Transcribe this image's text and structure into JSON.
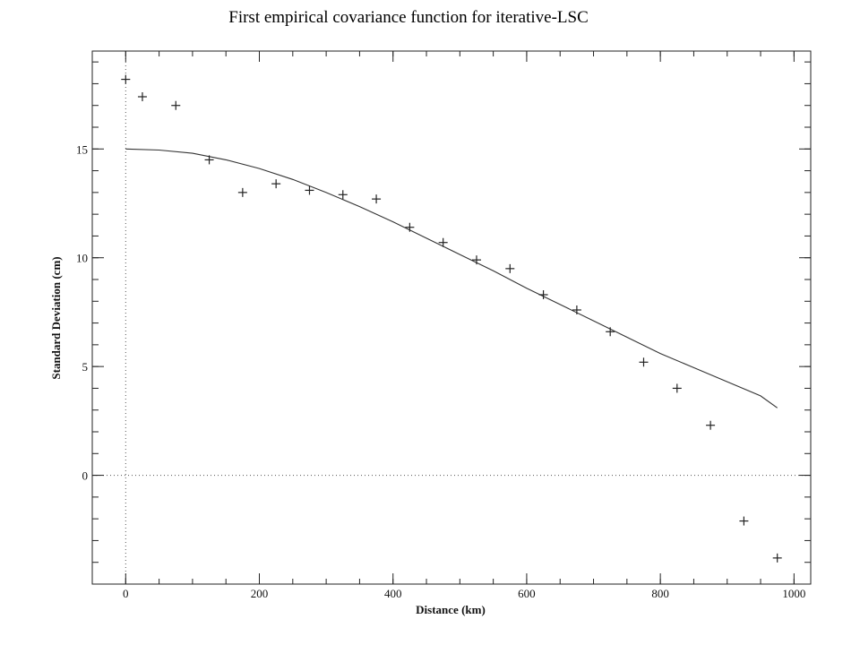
{
  "chart_data": {
    "type": "scatter",
    "title": "First empirical covariance function for iterative-LSC",
    "xlabel": "Distance (km)",
    "ylabel": "Standard Deviation (cm)",
    "xlim": [
      -50,
      1025
    ],
    "ylim": [
      -5,
      19.5
    ],
    "x_ticks": [
      0,
      200,
      400,
      600,
      800,
      1000
    ],
    "y_ticks": [
      0,
      5,
      10,
      15
    ],
    "x_minor_step": 50,
    "y_minor_step": 1,
    "reference_lines": {
      "x": 0,
      "y": 0,
      "style": "dotted"
    },
    "series": [
      {
        "kind": "markers",
        "marker": "plus",
        "x": [
          0,
          25,
          75,
          125,
          175,
          225,
          275,
          325,
          375,
          425,
          475,
          525,
          575,
          625,
          675,
          725,
          775,
          825,
          875,
          925,
          975
        ],
        "y": [
          18.2,
          17.4,
          17.0,
          14.5,
          13.0,
          13.4,
          13.1,
          12.9,
          12.7,
          11.4,
          10.7,
          9.9,
          9.5,
          8.3,
          7.6,
          6.6,
          5.2,
          4.0,
          2.3,
          -2.1,
          -3.8
        ]
      },
      {
        "kind": "line",
        "x": [
          0,
          50,
          100,
          150,
          200,
          250,
          300,
          350,
          400,
          450,
          500,
          550,
          600,
          650,
          700,
          750,
          800,
          850,
          900,
          950,
          975
        ],
        "y": [
          15.0,
          14.95,
          14.8,
          14.5,
          14.1,
          13.6,
          13.0,
          12.35,
          11.65,
          10.9,
          10.15,
          9.4,
          8.6,
          7.85,
          7.1,
          6.35,
          5.6,
          4.95,
          4.3,
          3.65,
          3.1
        ]
      }
    ]
  }
}
